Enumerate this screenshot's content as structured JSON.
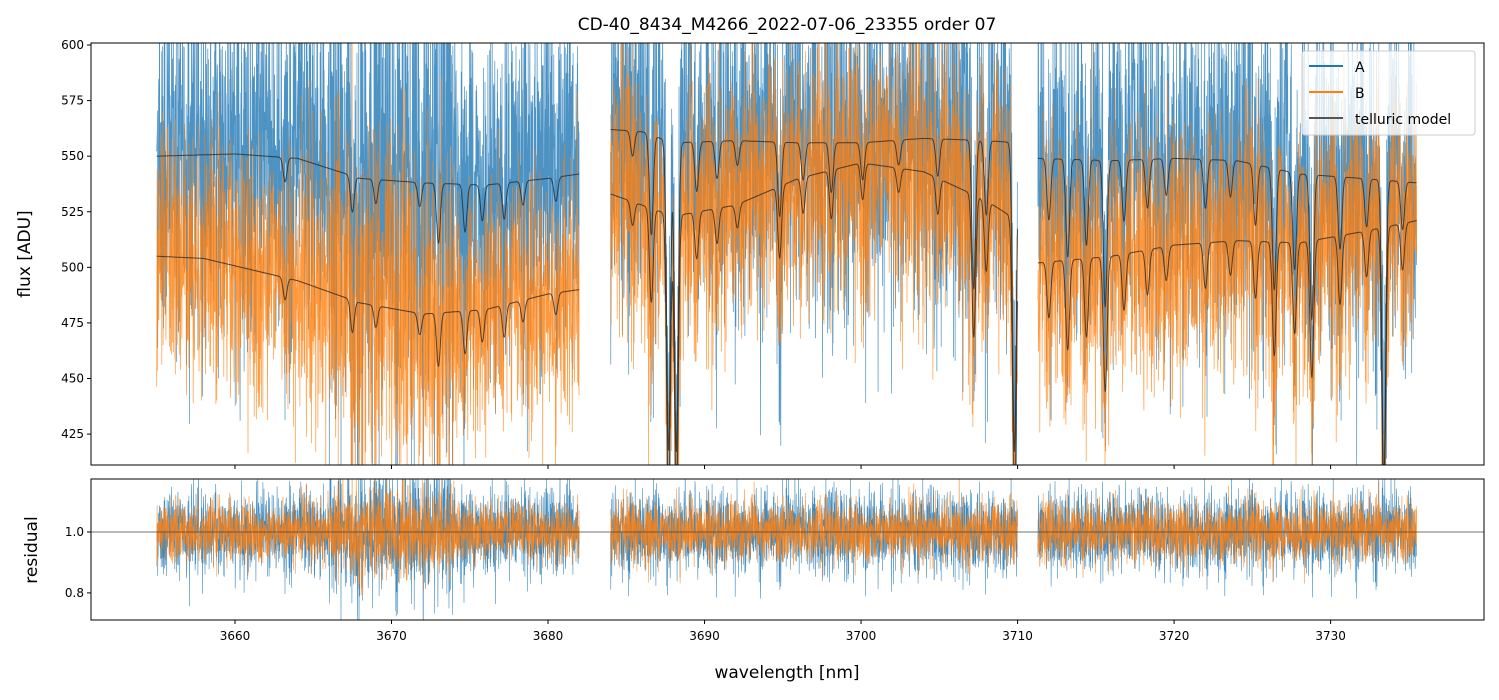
{
  "chart_data": [
    {
      "type": "line",
      "title": "CD-40_8434_M4266_2022-07-06_23355  order 07",
      "xlabel": "wavelength [nm]",
      "ylabel": "flux [ADU]",
      "xlim": [
        3650.8,
        3739.8
      ],
      "ylim": [
        411.1,
        600.9
      ],
      "yticks": [
        425,
        450,
        475,
        500,
        525,
        550,
        575,
        600
      ],
      "xticks": [
        3660,
        3670,
        3680,
        3690,
        3700,
        3710,
        3720,
        3730
      ],
      "legend": {
        "placement": "top-right",
        "entries": [
          "A",
          "B",
          "telluric model"
        ]
      },
      "colors": {
        "A": "#1f77b4",
        "B": "#ff7f0e",
        "telluric model": "#333333"
      },
      "segments": [
        {
          "range": [
            3655.0,
            3682.0
          ],
          "A_continuum": [
            [
              3655,
              550
            ],
            [
              3660,
              551
            ],
            [
              3664,
              549
            ],
            [
              3668,
              540
            ],
            [
              3672,
              538
            ],
            [
              3676,
              537
            ],
            [
              3680,
              540
            ],
            [
              3682,
              542
            ]
          ],
          "B_continuum": [
            [
              3655,
              505
            ],
            [
              3658,
              504
            ],
            [
              3664,
              494
            ],
            [
              3668,
              484
            ],
            [
              3672,
              479
            ],
            [
              3676,
              481
            ],
            [
              3680,
              488
            ],
            [
              3682,
              490
            ]
          ],
          "noise_A": 22,
          "noise_B": 24
        },
        {
          "range": [
            3684.0,
            3710.0
          ],
          "A_continuum": [
            [
              3684,
              562
            ],
            [
              3686,
              561
            ],
            [
              3688,
              556
            ],
            [
              3692,
              557
            ],
            [
              3696,
              556
            ],
            [
              3700,
              556
            ],
            [
              3704,
              558
            ],
            [
              3708,
              557
            ],
            [
              3710,
              556
            ]
          ],
          "B_continuum": [
            [
              3684,
              533
            ],
            [
              3688,
              523
            ],
            [
              3692,
              528
            ],
            [
              3696,
              540
            ],
            [
              3700,
              547
            ],
            [
              3704,
              543
            ],
            [
              3708,
              530
            ],
            [
              3710,
              521
            ]
          ],
          "noise_A": 20,
          "noise_B": 22
        },
        {
          "range": [
            3711.3,
            3735.5
          ],
          "A_continuum": [
            [
              3711.3,
              549
            ],
            [
              3716,
              548
            ],
            [
              3720,
              549
            ],
            [
              3724,
              548
            ],
            [
              3728,
              542
            ],
            [
              3732,
              540
            ],
            [
              3735.5,
              538
            ]
          ],
          "B_continuum": [
            [
              3711.3,
              502
            ],
            [
              3716,
              505
            ],
            [
              3720,
              510
            ],
            [
              3724,
              512
            ],
            [
              3728,
              511
            ],
            [
              3732,
              516
            ],
            [
              3735.5,
              521
            ]
          ],
          "noise_A": 22,
          "noise_B": 24
        }
      ],
      "telluric_lines": [
        [
          3663.2,
          0.02
        ],
        [
          3667.5,
          0.03
        ],
        [
          3669.0,
          0.02
        ],
        [
          3671.8,
          0.02
        ],
        [
          3673.0,
          0.05
        ],
        [
          3674.7,
          0.04
        ],
        [
          3675.8,
          0.03
        ],
        [
          3677.2,
          0.03
        ],
        [
          3678.4,
          0.02
        ],
        [
          3680.5,
          0.02
        ],
        [
          3685.4,
          0.02
        ],
        [
          3686.6,
          0.08
        ],
        [
          3687.7,
          0.25
        ],
        [
          3688.2,
          0.25
        ],
        [
          3689.5,
          0.04
        ],
        [
          3690.8,
          0.03
        ],
        [
          3692.1,
          0.02
        ],
        [
          3694.8,
          0.06
        ],
        [
          3696.3,
          0.03
        ],
        [
          3698.1,
          0.04
        ],
        [
          3700.1,
          0.03
        ],
        [
          3702.4,
          0.02
        ],
        [
          3704.9,
          0.03
        ],
        [
          3707.2,
          0.12
        ],
        [
          3708.0,
          0.06
        ],
        [
          3709.8,
          0.25
        ],
        [
          3712.0,
          0.05
        ],
        [
          3713.2,
          0.08
        ],
        [
          3714.4,
          0.07
        ],
        [
          3715.6,
          0.12
        ],
        [
          3716.8,
          0.05
        ],
        [
          3718.3,
          0.04
        ],
        [
          3719.5,
          0.03
        ],
        [
          3722.0,
          0.04
        ],
        [
          3723.6,
          0.03
        ],
        [
          3725.2,
          0.05
        ],
        [
          3726.4,
          0.1
        ],
        [
          3727.7,
          0.08
        ],
        [
          3728.8,
          0.12
        ],
        [
          3730.6,
          0.06
        ],
        [
          3732.3,
          0.04
        ],
        [
          3733.4,
          0.25
        ],
        [
          3734.6,
          0.04
        ]
      ],
      "line_width_nm": 0.12
    },
    {
      "type": "line",
      "xlabel": "wavelength [nm]",
      "ylabel": "residual",
      "xlim": [
        3650.8,
        3739.8
      ],
      "ylim": [
        0.711,
        1.174
      ],
      "yticks": [
        0.8,
        1.0
      ],
      "reference_line": 1.0,
      "noise_A": 0.07,
      "noise_B": 0.05
    }
  ]
}
